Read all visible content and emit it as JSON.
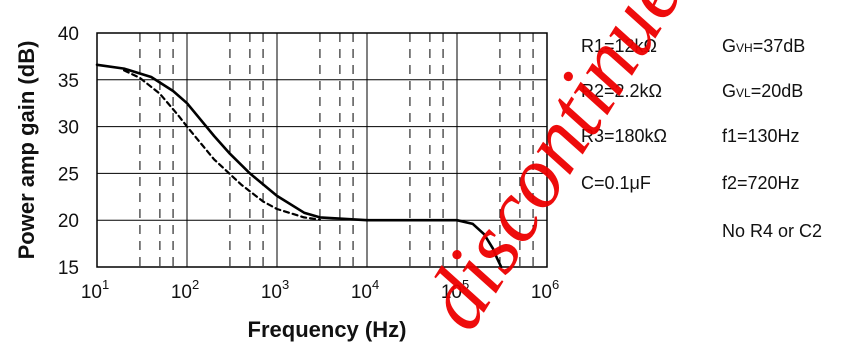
{
  "chart_data": {
    "type": "line",
    "title": "",
    "xlabel": "Frequency (Hz)",
    "ylabel": "Power amp gain (dB)",
    "xscale": "log",
    "xlim": [
      10,
      1000000
    ],
    "ylim": [
      15,
      40
    ],
    "xticks": [
      {
        "base": "10",
        "exp": "1",
        "value": 10
      },
      {
        "base": "10",
        "exp": "2",
        "value": 100
      },
      {
        "base": "10",
        "exp": "3",
        "value": 1000
      },
      {
        "base": "10",
        "exp": "4",
        "value": 10000
      },
      {
        "base": "10",
        "exp": "5",
        "value": 100000
      },
      {
        "base": "10",
        "exp": "6",
        "value": 1000000
      }
    ],
    "yticks": [
      "15",
      "20",
      "25",
      "30",
      "35",
      "40"
    ],
    "grid": true,
    "series": [
      {
        "style": "solid",
        "color": "#000000",
        "points": [
          [
            10,
            36.6
          ],
          [
            20,
            36.2
          ],
          [
            40,
            35.3
          ],
          [
            70,
            33.8
          ],
          [
            100,
            32.5
          ],
          [
            200,
            29.0
          ],
          [
            300,
            27.1
          ],
          [
            500,
            25.0
          ],
          [
            1000,
            22.6
          ],
          [
            2000,
            20.8
          ],
          [
            3000,
            20.3
          ],
          [
            10000,
            20.0
          ],
          [
            100000,
            20.0
          ],
          [
            150000,
            19.6
          ],
          [
            200000,
            18.5
          ],
          [
            250000,
            17.0
          ],
          [
            280000,
            15.9
          ],
          [
            310000,
            15.0
          ]
        ]
      },
      {
        "style": "dashed",
        "color": "#000000",
        "points": [
          [
            20,
            36.0
          ],
          [
            30,
            35.2
          ],
          [
            50,
            33.5
          ],
          [
            80,
            31.2
          ],
          [
            100,
            30.0
          ],
          [
            200,
            26.5
          ],
          [
            400,
            23.8
          ],
          [
            700,
            22.0
          ],
          [
            1000,
            21.2
          ],
          [
            2000,
            20.3
          ],
          [
            3000,
            20.05
          ]
        ]
      }
    ],
    "annotations": {
      "left": [
        "R1=12kΩ",
        "R2=2.2kΩ",
        "R3=180kΩ",
        "C=0.1μF"
      ],
      "right": [
        {
          "main": "G",
          "sub": "VH",
          "rest": "=37dB"
        },
        {
          "main": "G",
          "sub": "VL",
          "rest": "=20dB"
        },
        {
          "main": "f1=130Hz",
          "sub": "",
          "rest": ""
        },
        {
          "main": "f2=720Hz",
          "sub": "",
          "rest": ""
        }
      ],
      "footer": "No R4  or C2"
    },
    "watermark": "discontinued",
    "watermark_color": "#ee0000"
  }
}
